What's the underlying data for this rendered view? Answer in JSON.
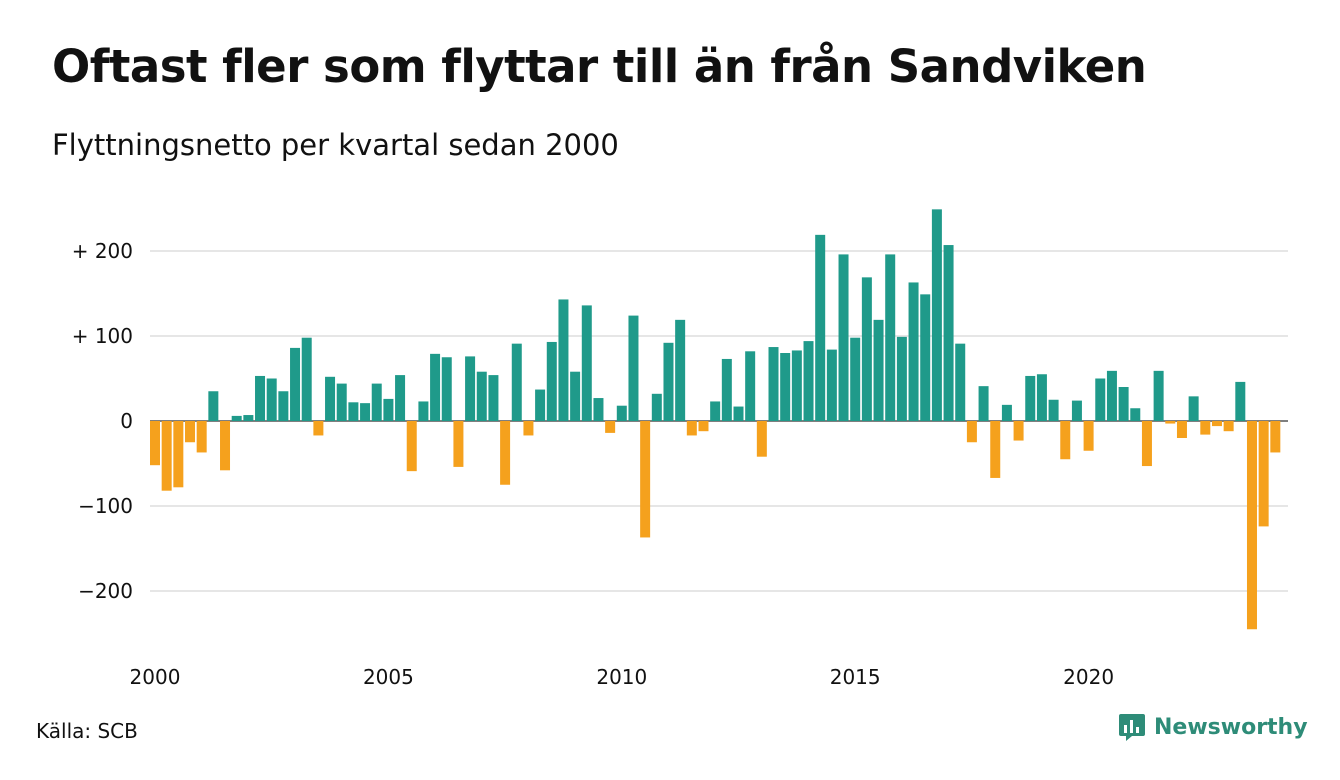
{
  "title": "Oftast fler som flyttar till än från Sandviken",
  "subtitle": "Flyttningsnetto per kvartal sedan 2000",
  "source": "Källa: SCB",
  "brand": "Newsworthy",
  "colors": {
    "positive": "#1f9a8a",
    "negative": "#f5a11d",
    "grid": "#dddddd",
    "brand": "#2e8c78",
    "text": "#111111"
  },
  "chart_data": {
    "type": "bar",
    "ylim": [
      -260,
      260
    ],
    "yticks": [
      {
        "value": 200,
        "label": "+ 200"
      },
      {
        "value": 100,
        "label": "+ 100"
      },
      {
        "value": 0,
        "label": "0"
      },
      {
        "value": -100,
        "label": "−100"
      },
      {
        "value": -200,
        "label": "−200"
      }
    ],
    "xticks": [
      "2000",
      "2005",
      "2010",
      "2015",
      "2020"
    ],
    "grid": true,
    "series": [
      {
        "start": "2000 Q1",
        "values": [
          -52,
          -82,
          -78,
          -25,
          -37,
          35,
          -58,
          6,
          7,
          53,
          50,
          35,
          86,
          98,
          -17,
          52,
          44,
          22,
          21,
          44,
          26,
          54,
          -59,
          23,
          79,
          75,
          -54,
          76,
          58,
          54,
          -75,
          91,
          -17,
          37,
          93,
          143,
          58,
          136,
          27,
          -14,
          18,
          124,
          -137,
          32,
          92,
          119,
          -17,
          -12,
          23,
          73,
          17,
          82,
          -42,
          87,
          80,
          83,
          94,
          219,
          84,
          196,
          98,
          169,
          119,
          196,
          99,
          163,
          149,
          249,
          207,
          91,
          -25,
          41,
          -67,
          19,
          -23,
          53,
          55,
          25,
          -45,
          24,
          -35,
          50,
          59,
          40,
          15,
          -53,
          59,
          -3,
          -20,
          29,
          -16,
          -6,
          -12,
          46,
          -245,
          -124,
          -37
        ]
      }
    ]
  }
}
